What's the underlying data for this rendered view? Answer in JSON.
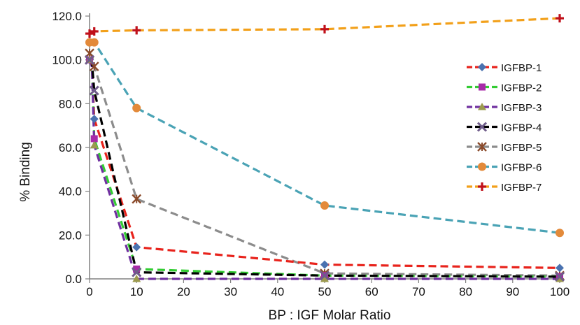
{
  "chart_data": {
    "type": "line",
    "title": "",
    "xlabel": "BP : IGF Molar Ratio",
    "ylabel": "% Binding",
    "xlim": [
      0,
      100
    ],
    "ylim": [
      0,
      120
    ],
    "x_ticks": [
      "0",
      "10",
      "20",
      "30",
      "40",
      "50",
      "60",
      "70",
      "80",
      "90",
      "100"
    ],
    "y_ticks": [
      "0.0",
      "20.0",
      "40.0",
      "60.0",
      "80.0",
      "100.0",
      "120.0"
    ],
    "grid": false,
    "legend_position": "right",
    "x": [
      0,
      0.5,
      1,
      10,
      50,
      100
    ],
    "series": [
      {
        "name": "IGFBP-1",
        "color": "#e8231c",
        "marker": "diamond",
        "marker_color": "#4a72b0",
        "values": [
          100,
          98,
          73,
          14.5,
          6.5,
          5
        ]
      },
      {
        "name": "IGFBP-2",
        "color": "#33cc33",
        "marker": "square",
        "marker_color": "#a82aa8",
        "values": [
          100,
          99,
          64,
          4.5,
          1.5,
          1
        ]
      },
      {
        "name": "IGFBP-3",
        "color": "#7030a0",
        "marker": "triangle",
        "marker_color": "#9c9a4e",
        "values": [
          100,
          97,
          61,
          0,
          0,
          0
        ]
      },
      {
        "name": "IGFBP-4",
        "color": "#000000",
        "marker": "x",
        "marker_color": "#6f5c8a",
        "values": [
          100,
          99,
          86,
          3,
          1.5,
          1
        ]
      },
      {
        "name": "IGFBP-5",
        "color": "#8c8c8c",
        "marker": "star",
        "marker_color": "#8a4a2a",
        "values": [
          103,
          102,
          97,
          36.5,
          2.5,
          1.5
        ]
      },
      {
        "name": "IGFBP-6",
        "color": "#4aa3b5",
        "marker": "circle",
        "marker_color": "#e38a3a",
        "values": [
          108,
          108,
          108,
          78,
          33.5,
          21
        ]
      },
      {
        "name": "IGFBP-7",
        "color": "#f2a01a",
        "marker": "plus",
        "marker_color": "#c0101a",
        "values": [
          112,
          112,
          113,
          113.5,
          114,
          119
        ]
      }
    ]
  }
}
